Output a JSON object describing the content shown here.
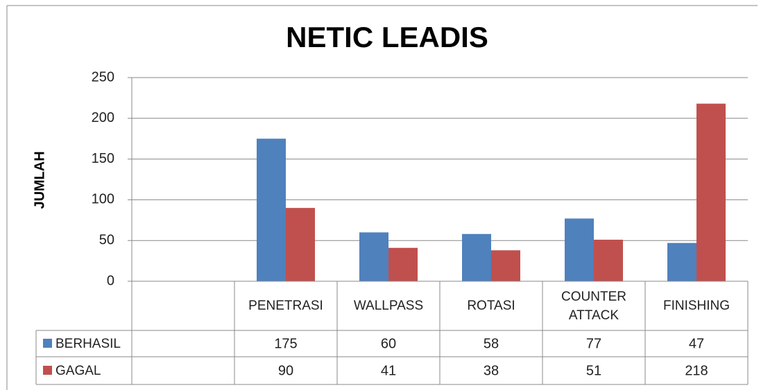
{
  "chart_data": {
    "type": "bar",
    "title": "NETIC LEADIS",
    "y_label": "JUMLAH",
    "categories": [
      null,
      "PENETRASI",
      "WALLPASS",
      "ROTASI",
      "COUNTER ATTACK",
      "FINISHING"
    ],
    "series": [
      {
        "name": "BERHASIL",
        "color": "#4f81bd",
        "values": [
          null,
          175,
          60,
          58,
          77,
          47
        ]
      },
      {
        "name": "GAGAL",
        "color": "#c0504d",
        "values": [
          null,
          90,
          41,
          38,
          51,
          218
        ]
      }
    ],
    "ylim": [
      0,
      250
    ],
    "yticks": [
      0,
      50,
      100,
      150,
      200,
      250
    ],
    "grid": true,
    "data_table": true
  }
}
